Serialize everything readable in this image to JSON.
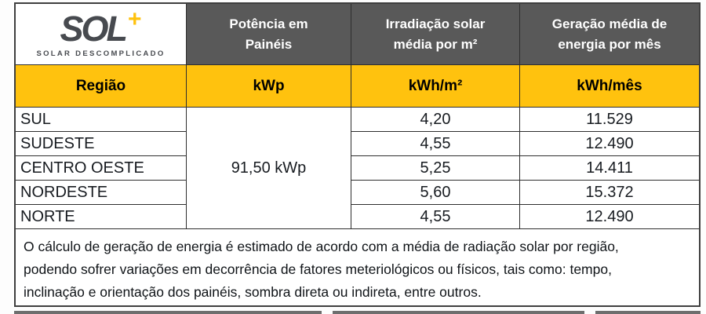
{
  "logo": {
    "text": "SOL",
    "plus": "+",
    "subtitle": "SOLAR DESCOMPLICADO"
  },
  "header": {
    "potencia": {
      "line1": "Potência em",
      "line2": "Painéis"
    },
    "irradiacao": {
      "line1": "Irradiação solar",
      "line2": "média por m²"
    },
    "geracao": {
      "line1": "Geração média de",
      "line2": "energia por mês"
    }
  },
  "units": {
    "region": "Região",
    "kwp": "kWp",
    "kwh_m2": "kWh/m²",
    "kwh_mes": "kWh/mês"
  },
  "merged_kwp_value": "91,50 kWp",
  "rows": [
    {
      "region": "SUL",
      "irradiation": "4,20",
      "generation": "11.529"
    },
    {
      "region": "SUDESTE",
      "irradiation": "4,55",
      "generation": "12.490"
    },
    {
      "region": "CENTRO OESTE",
      "irradiation": "5,25",
      "generation": "14.411"
    },
    {
      "region": "NORDESTE",
      "irradiation": "5,60",
      "generation": "15.372"
    },
    {
      "region": "NORTE",
      "irradiation": "4,55",
      "generation": "12.490"
    }
  ],
  "footer_note": "O cálculo de geração de energia é estimado de acordo com a média de radiação solar por região, podendo sofrer variações em decorrência de fatores meteriológicos ou físicos, tais como: tempo, inclinação e orientação dos painéis, sombra direta ou indireta, entre outros.",
  "colors": {
    "accent_yellow": "#FFC20E",
    "header_gray": "#595959",
    "logo_gray": "#474A4F"
  }
}
